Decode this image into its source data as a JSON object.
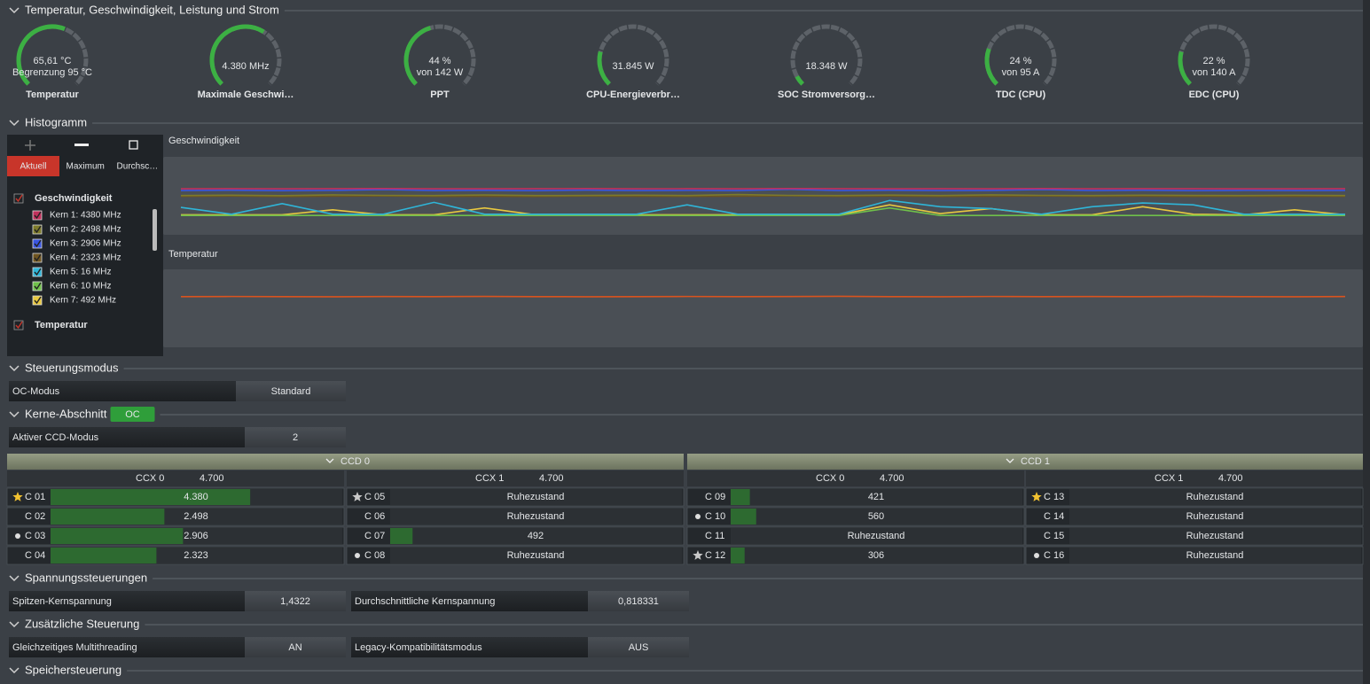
{
  "monitor": {
    "title": "Temperatur, Geschwindigkeit, Leistung und Strom",
    "gauges": [
      {
        "value": "65,61 °C",
        "detail": "Begrenzung 95 °C",
        "label": "Temperatur",
        "arc_percent": 58
      },
      {
        "value": "4.380  MHz",
        "label": "Maximale Geschwi…",
        "arc_percent": 62
      },
      {
        "value": "44 %",
        "detail": "von 142 W",
        "label": "PPT",
        "arc_percent": 44
      },
      {
        "value": "31.845 W",
        "label": "CPU-Energieverbr…",
        "arc_percent": 22
      },
      {
        "value": "18.348 W",
        "label": "SOC Stromversorg…",
        "arc_percent": 6
      },
      {
        "value": "24 %",
        "detail": "von 95 A",
        "label": "TDC (CPU)",
        "arc_percent": 24
      },
      {
        "value": "22 %",
        "detail": "von 140 A",
        "label": "EDC (CPU)",
        "arc_percent": 22
      }
    ]
  },
  "histogram": {
    "title": "Histogramm",
    "buttons": [
      "Aktuell",
      "Maximum",
      "Durchsc…"
    ],
    "charts": [
      {
        "type": "line",
        "title": "Geschwindigkeit",
        "ylim": [
          -3000,
          9500
        ],
        "series": [
          {
            "name": "Kern 1",
            "legend": "Kern 1: 4380 MHz",
            "color": "#c0305c",
            "values": [
              4380,
              4400,
              4380,
              4390,
              4420,
              4380,
              4380,
              4400,
              4410,
              4380,
              4390,
              4380,
              4420,
              4400,
              4380,
              4390,
              4380,
              4410,
              4380,
              4400,
              4390,
              4380,
              4380,
              4390
            ]
          },
          {
            "name": "Kern 2",
            "legend": "Kern 2: 2498 MHz",
            "color": "#7d7a2a",
            "values": [
              3300,
              3350,
              3280,
              3400,
              3320,
              3300,
              3380,
              3290,
              3310,
              3350,
              3300,
              3450,
              3320,
              3300,
              3360,
              3290,
              3400,
              3320,
              3300,
              3350,
              3310,
              3300,
              3340,
              3300
            ]
          },
          {
            "name": "Kern 3",
            "legend": "Kern 3: 2906 MHz",
            "color": "#3a55e0",
            "values": [
              4100,
              4150,
              4080,
              4120,
              4250,
              4100,
              4130,
              4080,
              4160,
              4100,
              4120,
              4090,
              4280,
              4100,
              4140,
              4090,
              4110,
              4260,
              4100,
              4150,
              4080,
              4120,
              4100,
              4110
            ]
          },
          {
            "name": "Kern 4",
            "legend": "Kern 4: 2323 MHz",
            "color": "#6e5420",
            "values": [
              3150,
              3200,
              3120,
              3180,
              3220,
              3150,
              3170,
              3140,
              3200,
              3160,
              3150,
              3180,
              3250,
              3150,
              3200,
              3140,
              3170,
              3220,
              3150,
              3190,
              3140,
              3160,
              3150,
              3170
            ]
          },
          {
            "name": "Kern 5",
            "legend": "Kern 5: 16 MHz",
            "color": "#2fb5d8",
            "values": [
              1400,
              300,
              2000,
              300,
              300,
              2200,
              300,
              300,
              300,
              300,
              1800,
              300,
              300,
              300,
              2500,
              1500,
              1200,
              300,
              1500,
              2100,
              1800,
              300,
              300,
              300
            ]
          },
          {
            "name": "Kern 6",
            "legend": "Kern 6: 10 MHz",
            "color": "#6fc04a",
            "values": [
              100,
              100,
              100,
              100,
              100,
              100,
              100,
              100,
              100,
              100,
              100,
              100,
              100,
              100,
              1300,
              100,
              100,
              100,
              100,
              100,
              100,
              100,
              100,
              100
            ]
          },
          {
            "name": "Kern 7",
            "legend": "Kern 7: 492 MHz",
            "color": "#e8c840",
            "values": [
              200,
              200,
              200,
              1000,
              200,
              200,
              1300,
              200,
              200,
              200,
              200,
              200,
              200,
              200,
              1800,
              400,
              1200,
              200,
              200,
              1500,
              300,
              200,
              1000,
              200
            ]
          }
        ]
      },
      {
        "type": "line",
        "title": "Temperatur",
        "ylim": [
          0,
          100
        ],
        "series": [
          {
            "name": "Temperatur",
            "color": "#d9531e",
            "values": [
              65,
              65.2,
              65,
              64.8,
              65.1,
              65,
              65.3,
              65,
              64.9,
              65,
              65.2,
              65,
              65.1,
              65.4,
              65,
              64.9,
              65.2,
              65,
              65.1,
              65,
              65.3,
              65,
              64.9,
              65.1
            ]
          }
        ]
      }
    ]
  },
  "control_mode": {
    "title": "Steuerungsmodus",
    "label": "OC-Modus",
    "value": "Standard"
  },
  "cores": {
    "title": "Kerne-Abschnitt",
    "badge": "OC",
    "ccd_mode": {
      "label": "Aktiver CCD-Modus",
      "value": "2"
    },
    "ccds": [
      {
        "name": "CCD 0",
        "ccxs": [
          {
            "name": "CCX 0",
            "limit": "4.700",
            "cores": [
              {
                "name": "C 01",
                "value": 4380,
                "label": "4.380",
                "marker": "gold-star"
              },
              {
                "name": "C 02",
                "value": 2498,
                "label": "2.498"
              },
              {
                "name": "C 03",
                "value": 2906,
                "label": "2.906",
                "marker": "dot"
              },
              {
                "name": "C 04",
                "value": 2323,
                "label": "2.323"
              }
            ]
          },
          {
            "name": "CCX 1",
            "limit": "4.700",
            "cores": [
              {
                "name": "C 05",
                "label": "Ruhezustand",
                "marker": "star"
              },
              {
                "name": "C 06",
                "label": "Ruhezustand"
              },
              {
                "name": "C 07",
                "value": 492
              },
              {
                "name": "C 08",
                "label": "Ruhezustand",
                "marker": "dot"
              }
            ]
          }
        ]
      },
      {
        "name": "CCD 1",
        "ccxs": [
          {
            "name": "CCX 0",
            "limit": "4.700",
            "cores": [
              {
                "name": "C 09",
                "value": 421
              },
              {
                "name": "C 10",
                "value": 560,
                "marker": "dot"
              },
              {
                "name": "C 11",
                "label": "Ruhezustand"
              },
              {
                "name": "C 12",
                "value": 306,
                "marker": "star"
              }
            ]
          },
          {
            "name": "CCX 1",
            "limit": "4.700",
            "cores": [
              {
                "name": "C 13",
                "label": "Ruhezustand",
                "marker": "gold-star"
              },
              {
                "name": "C 14",
                "label": "Ruhezustand"
              },
              {
                "name": "C 15",
                "label": "Ruhezustand"
              },
              {
                "name": "C 16",
                "label": "Ruhezustand",
                "marker": "dot"
              }
            ]
          }
        ]
      }
    ]
  },
  "voltage": {
    "title": "Spannungssteuerungen",
    "fields": [
      {
        "label": "Spitzen-Kernspannung",
        "value": "1,4322"
      },
      {
        "label": "Durchschnittliche Kernspannung",
        "value": "0,818331"
      }
    ]
  },
  "additional": {
    "title": "Zusätzliche Steuerung",
    "fields": [
      {
        "label": "Gleichzeitiges Multithreading",
        "value": "AN"
      },
      {
        "label": "Legacy-Kompatibilitätsmodus",
        "value": "AUS"
      }
    ]
  },
  "memory": {
    "title": "Speichersteuerung"
  }
}
